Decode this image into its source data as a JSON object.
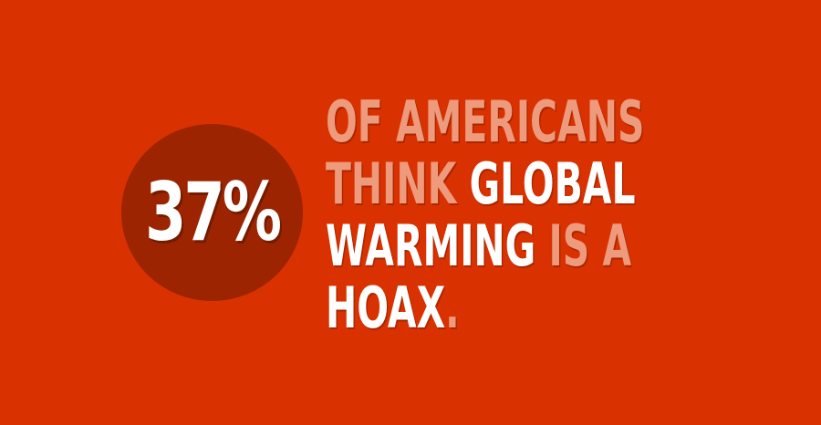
{
  "colors": {
    "background": "#d93100",
    "circle": "#9c2400",
    "light_text": "#ee9a7c",
    "white_text": "#ffffff"
  },
  "stat": {
    "percent": "37%"
  },
  "statement": {
    "lines": [
      [
        {
          "text": "OF AMERICANS",
          "tone": "light"
        }
      ],
      [
        {
          "text": "THINK ",
          "tone": "light"
        },
        {
          "text": "GLOBAL",
          "tone": "white"
        }
      ],
      [
        {
          "text": "WARMING",
          "tone": "white"
        },
        {
          "text": " IS A",
          "tone": "light"
        }
      ],
      [
        {
          "text": "HOAX",
          "tone": "white"
        },
        {
          "text": ".",
          "tone": "light"
        }
      ]
    ]
  }
}
